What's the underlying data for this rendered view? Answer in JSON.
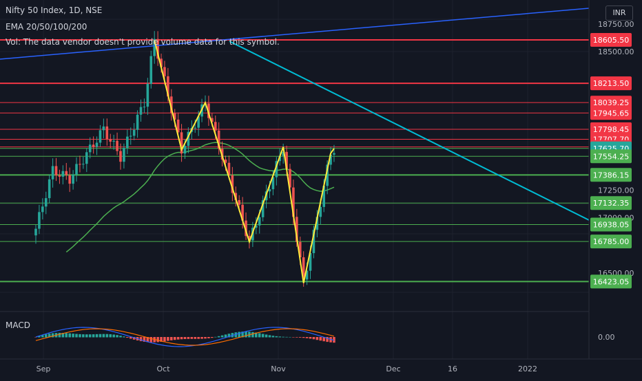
{
  "legend": {
    "symbol": "Nifty 50 Index, 1D, NSE",
    "ema": "EMA 20/50/100/200",
    "vol": "Vol: The data vendor doesn't provide volume data for this symbol.",
    "macd": "MACD",
    "currency": "INR"
  },
  "colors": {
    "background": "#131722",
    "up": "#26a69a",
    "down": "#ef5350",
    "ema": "#4caf50",
    "trend_long": "#2962ff",
    "trend_down": "#00bcd4",
    "zigzag": "#ffeb3b",
    "red_level": "#f23645",
    "green_level": "#4caf50",
    "macd": "#2962ff",
    "signal": "#ff6d00"
  },
  "chart_data": {
    "type": "candlestick",
    "y_ticks": [
      18750.0,
      18500.0,
      17250.0,
      17000.0,
      16500.0
    ],
    "macd_ticks": [
      0.0
    ],
    "x_ticks": [
      "Sep",
      "Oct",
      "Nov",
      "Dec",
      "16",
      "2022"
    ],
    "red_levels": [
      18605.5,
      18213.5,
      18039.25,
      17945.65,
      17798.45,
      17707.7,
      17639.1
    ],
    "green_levels": [
      17625.7,
      17554.25,
      17386.15,
      17132.35,
      16938.05,
      16785.0,
      16423.05
    ],
    "last_price": 17625.7,
    "label_levels": [
      {
        "text": "18605.50",
        "value": 18605.5,
        "color": "#f23645"
      },
      {
        "text": "18213.50",
        "value": 18213.5,
        "color": "#f23645"
      },
      {
        "text": "18039.25",
        "value": 18039.25,
        "color": "#f23645"
      },
      {
        "text": "17945.65",
        "value": 17945.65,
        "color": "#f23645"
      },
      {
        "text": "17798.45",
        "value": 17798.45,
        "color": "#f23645"
      },
      {
        "text": "17707.70",
        "value": 17707.7,
        "color": "#f23645"
      },
      {
        "text": "17639.10",
        "value": 17639.1,
        "color": "#f23645"
      },
      {
        "text": "17625.70",
        "value": 17625.7,
        "color": "#26a69a"
      },
      {
        "text": "17554.25",
        "value": 17554.25,
        "color": "#4caf50"
      },
      {
        "text": "17386.15",
        "value": 17386.15,
        "color": "#4caf50"
      },
      {
        "text": "17132.35",
        "value": 17132.35,
        "color": "#4caf50"
      },
      {
        "text": "16938.05",
        "value": 16938.05,
        "color": "#4caf50"
      },
      {
        "text": "16785.00",
        "value": 16785.0,
        "color": "#4caf50"
      },
      {
        "text": "16423.05",
        "value": 16423.05,
        "color": "#4caf50"
      }
    ],
    "zigzag": [
      {
        "date": "2021-10-19",
        "price": 18605
      },
      {
        "date": "2021-10-29",
        "price": 17613
      },
      {
        "date": "2021-11-09",
        "price": 18039
      },
      {
        "date": "2021-11-26",
        "price": 16782
      },
      {
        "date": "2021-12-10",
        "price": 17639
      },
      {
        "date": "2021-12-20",
        "price": 16410
      },
      {
        "date": "2021-12-30",
        "price": 17580
      },
      {
        "date": "2021-12-31",
        "price": 17625
      }
    ],
    "macd": {
      "name": "MACD"
    }
  }
}
